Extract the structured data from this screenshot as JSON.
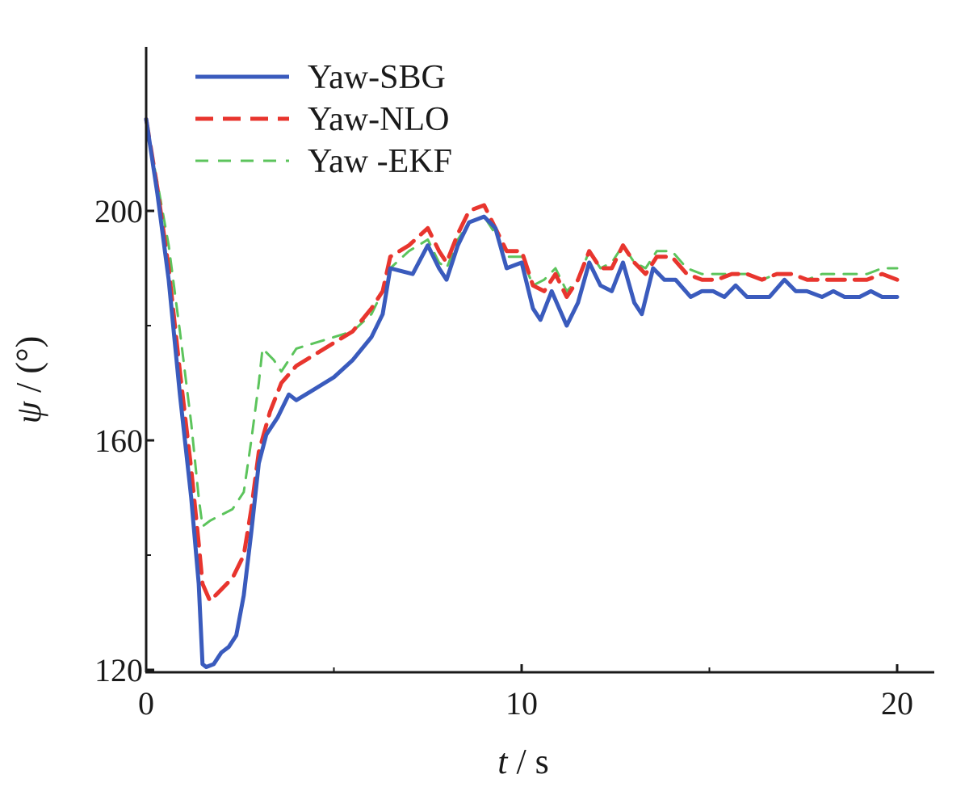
{
  "chart_data": {
    "type": "line",
    "title": "",
    "xlabel": {
      "symbol": "t",
      "unit": "s"
    },
    "ylabel": {
      "symbol": "ψ",
      "unit": "(°)"
    },
    "xlim": [
      0,
      21
    ],
    "ylim": [
      120,
      228
    ],
    "xticks": [
      0,
      10,
      20
    ],
    "yticks": [
      120,
      160,
      200
    ],
    "grid": false,
    "legend_position": "top-left",
    "series": [
      {
        "name": "Yaw-SBG",
        "color": "#3a5bbd",
        "style": "solid",
        "points": [
          [
            0,
            216
          ],
          [
            0.3,
            203
          ],
          [
            0.6,
            188
          ],
          [
            0.9,
            168
          ],
          [
            1.2,
            150
          ],
          [
            1.4,
            135
          ],
          [
            1.5,
            121
          ],
          [
            1.6,
            120.5
          ],
          [
            1.8,
            121
          ],
          [
            2.0,
            123
          ],
          [
            2.2,
            124
          ],
          [
            2.4,
            126
          ],
          [
            2.6,
            133
          ],
          [
            2.8,
            144
          ],
          [
            3.0,
            156
          ],
          [
            3.2,
            161
          ],
          [
            3.5,
            164
          ],
          [
            3.8,
            168
          ],
          [
            4.0,
            167
          ],
          [
            4.5,
            169
          ],
          [
            5.0,
            171
          ],
          [
            5.5,
            174
          ],
          [
            6.0,
            178
          ],
          [
            6.3,
            182
          ],
          [
            6.5,
            190
          ],
          [
            6.8,
            189.5
          ],
          [
            7.1,
            189
          ],
          [
            7.5,
            194
          ],
          [
            7.8,
            190
          ],
          [
            8.0,
            188
          ],
          [
            8.3,
            194
          ],
          [
            8.6,
            198
          ],
          [
            9.0,
            199
          ],
          [
            9.3,
            197
          ],
          [
            9.6,
            190
          ],
          [
            10.0,
            191
          ],
          [
            10.3,
            183
          ],
          [
            10.5,
            181
          ],
          [
            10.8,
            186
          ],
          [
            11.0,
            183
          ],
          [
            11.2,
            180
          ],
          [
            11.5,
            184
          ],
          [
            11.8,
            191
          ],
          [
            12.1,
            187
          ],
          [
            12.4,
            186
          ],
          [
            12.7,
            191
          ],
          [
            13.0,
            184
          ],
          [
            13.2,
            182
          ],
          [
            13.5,
            190
          ],
          [
            13.8,
            188
          ],
          [
            14.1,
            188
          ],
          [
            14.5,
            185
          ],
          [
            14.8,
            186
          ],
          [
            15.1,
            186
          ],
          [
            15.4,
            185
          ],
          [
            15.7,
            187
          ],
          [
            16.0,
            185
          ],
          [
            16.3,
            185
          ],
          [
            16.6,
            185
          ],
          [
            17.0,
            188
          ],
          [
            17.3,
            186
          ],
          [
            17.6,
            186
          ],
          [
            18.0,
            185
          ],
          [
            18.3,
            186
          ],
          [
            18.6,
            185
          ],
          [
            19.0,
            185
          ],
          [
            19.3,
            186
          ],
          [
            19.6,
            185
          ],
          [
            20.0,
            185
          ]
        ]
      },
      {
        "name": "Yaw-NLO",
        "color": "#e8352e",
        "style": "dashed",
        "points": [
          [
            0,
            216
          ],
          [
            0.3,
            204
          ],
          [
            0.6,
            190
          ],
          [
            0.9,
            172
          ],
          [
            1.2,
            155
          ],
          [
            1.4,
            142
          ],
          [
            1.5,
            135
          ],
          [
            1.7,
            132
          ],
          [
            2.0,
            134
          ],
          [
            2.3,
            136
          ],
          [
            2.6,
            140
          ],
          [
            2.8,
            148
          ],
          [
            3.0,
            158
          ],
          [
            3.3,
            165
          ],
          [
            3.6,
            170
          ],
          [
            4.0,
            173
          ],
          [
            4.5,
            175
          ],
          [
            5.0,
            177
          ],
          [
            5.5,
            179
          ],
          [
            6.0,
            183
          ],
          [
            6.3,
            186
          ],
          [
            6.5,
            192
          ],
          [
            7.0,
            194
          ],
          [
            7.5,
            197
          ],
          [
            7.8,
            193
          ],
          [
            8.0,
            191
          ],
          [
            8.3,
            196
          ],
          [
            8.6,
            200
          ],
          [
            9.0,
            201
          ],
          [
            9.3,
            197
          ],
          [
            9.6,
            193
          ],
          [
            10.0,
            193
          ],
          [
            10.3,
            187
          ],
          [
            10.6,
            186
          ],
          [
            10.9,
            189
          ],
          [
            11.2,
            185
          ],
          [
            11.5,
            188
          ],
          [
            11.8,
            193
          ],
          [
            12.1,
            190
          ],
          [
            12.4,
            190
          ],
          [
            12.7,
            194
          ],
          [
            13.0,
            191
          ],
          [
            13.3,
            189
          ],
          [
            13.6,
            192
          ],
          [
            14.0,
            192
          ],
          [
            14.4,
            189
          ],
          [
            14.8,
            188
          ],
          [
            15.2,
            188
          ],
          [
            15.6,
            189
          ],
          [
            16.0,
            189
          ],
          [
            16.4,
            188
          ],
          [
            16.8,
            189
          ],
          [
            17.2,
            189
          ],
          [
            17.6,
            188
          ],
          [
            18.0,
            188
          ],
          [
            18.4,
            188
          ],
          [
            18.8,
            188
          ],
          [
            19.2,
            188
          ],
          [
            19.6,
            189
          ],
          [
            20.0,
            188
          ]
        ]
      },
      {
        "name": "Yaw -EKF",
        "color": "#5cc45c",
        "style": "dashed",
        "points": [
          [
            0,
            215
          ],
          [
            0.3,
            205
          ],
          [
            0.6,
            194
          ],
          [
            0.9,
            179
          ],
          [
            1.2,
            163
          ],
          [
            1.4,
            150
          ],
          [
            1.5,
            145
          ],
          [
            1.7,
            146
          ],
          [
            2.0,
            147
          ],
          [
            2.3,
            148
          ],
          [
            2.6,
            151
          ],
          [
            2.8,
            160
          ],
          [
            3.0,
            170
          ],
          [
            3.1,
            176
          ],
          [
            3.4,
            174
          ],
          [
            3.6,
            172
          ],
          [
            4.0,
            176
          ],
          [
            4.5,
            177
          ],
          [
            5.0,
            178
          ],
          [
            5.5,
            179
          ],
          [
            6.0,
            182
          ],
          [
            6.3,
            186
          ],
          [
            6.5,
            190
          ],
          [
            7.0,
            193
          ],
          [
            7.5,
            195
          ],
          [
            7.8,
            191
          ],
          [
            8.0,
            190
          ],
          [
            8.3,
            195
          ],
          [
            8.6,
            198
          ],
          [
            9.0,
            199
          ],
          [
            9.3,
            196
          ],
          [
            9.6,
            192
          ],
          [
            10.0,
            192
          ],
          [
            10.3,
            187
          ],
          [
            10.6,
            188
          ],
          [
            10.9,
            190
          ],
          [
            11.2,
            186
          ],
          [
            11.5,
            188
          ],
          [
            11.8,
            193
          ],
          [
            12.1,
            190
          ],
          [
            12.4,
            191
          ],
          [
            12.7,
            194
          ],
          [
            13.0,
            191
          ],
          [
            13.3,
            190
          ],
          [
            13.6,
            193
          ],
          [
            14.0,
            193
          ],
          [
            14.4,
            190
          ],
          [
            14.8,
            189
          ],
          [
            15.2,
            189
          ],
          [
            15.6,
            189
          ],
          [
            16.0,
            189
          ],
          [
            16.4,
            188
          ],
          [
            16.8,
            189
          ],
          [
            17.2,
            189
          ],
          [
            17.6,
            188
          ],
          [
            18.0,
            189
          ],
          [
            18.4,
            189
          ],
          [
            18.8,
            189
          ],
          [
            19.2,
            189
          ],
          [
            19.6,
            190
          ],
          [
            20.0,
            190
          ]
        ]
      }
    ]
  }
}
